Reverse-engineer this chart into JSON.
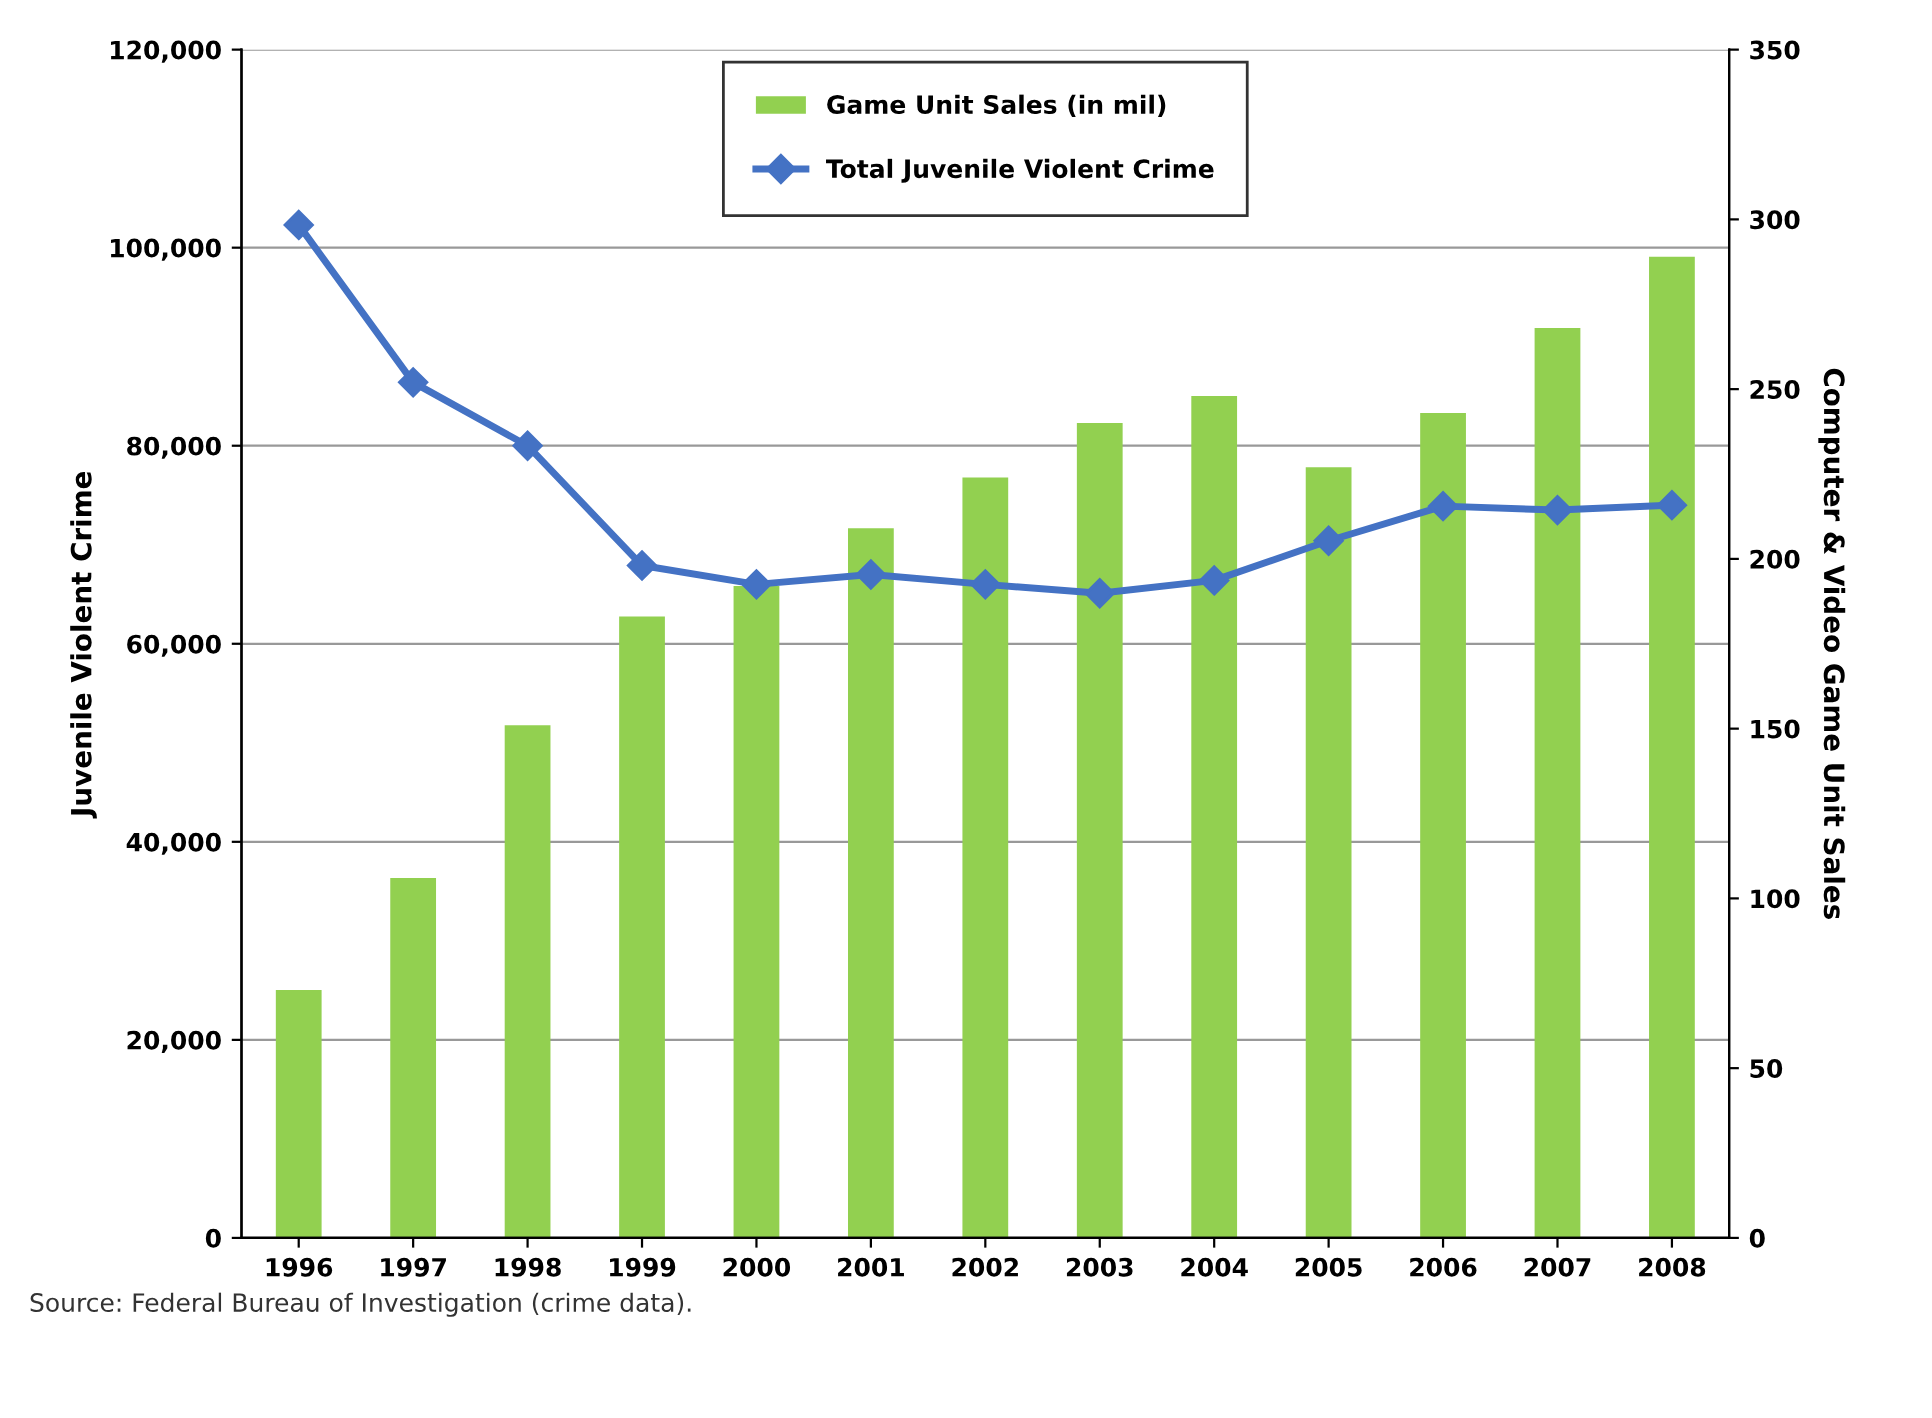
{
  "chart_data": {
    "type": "bar",
    "categories": [
      "1996",
      "1997",
      "1998",
      "1999",
      "2000",
      "2001",
      "2002",
      "2003",
      "2004",
      "2005",
      "2006",
      "2007",
      "2008"
    ],
    "ylabel": "Juvenile Violent Crime",
    "y2label": "Computer & Video Game Unit Sales",
    "ylim": [
      0,
      120000
    ],
    "yticks": [
      {
        "value": 0,
        "label": "0"
      },
      {
        "value": 20000,
        "label": "20,000"
      },
      {
        "value": 40000,
        "label": "40,000"
      },
      {
        "value": 60000,
        "label": "60,000"
      },
      {
        "value": 80000,
        "label": "80,000"
      },
      {
        "value": 100000,
        "label": "100,000"
      },
      {
        "value": 120000,
        "label": "120,000"
      }
    ],
    "y2lim": [
      0,
      350
    ],
    "y2ticks": [
      0,
      50,
      100,
      150,
      200,
      250,
      300,
      350
    ],
    "grid": "y",
    "legend": "top",
    "marker": "diamond",
    "series": [
      {
        "name": "Game Unit Sales (in mil)",
        "axis": "y2",
        "color": "#92d050",
        "values": [
          73,
          106,
          151,
          183,
          192,
          209,
          224,
          240,
          248,
          227,
          243,
          268,
          289
        ]
      },
      {
        "name": "Total Juvenile Violent Crime",
        "type": "line",
        "color": "#4472c4",
        "values": [
          102300,
          86400,
          80000,
          67900,
          66000,
          67000,
          66000,
          65100,
          66400,
          70400,
          73900,
          73500,
          74000
        ]
      }
    ],
    "annotations": [
      "Source: Federal Bureau of Investigation (crime data)."
    ]
  }
}
